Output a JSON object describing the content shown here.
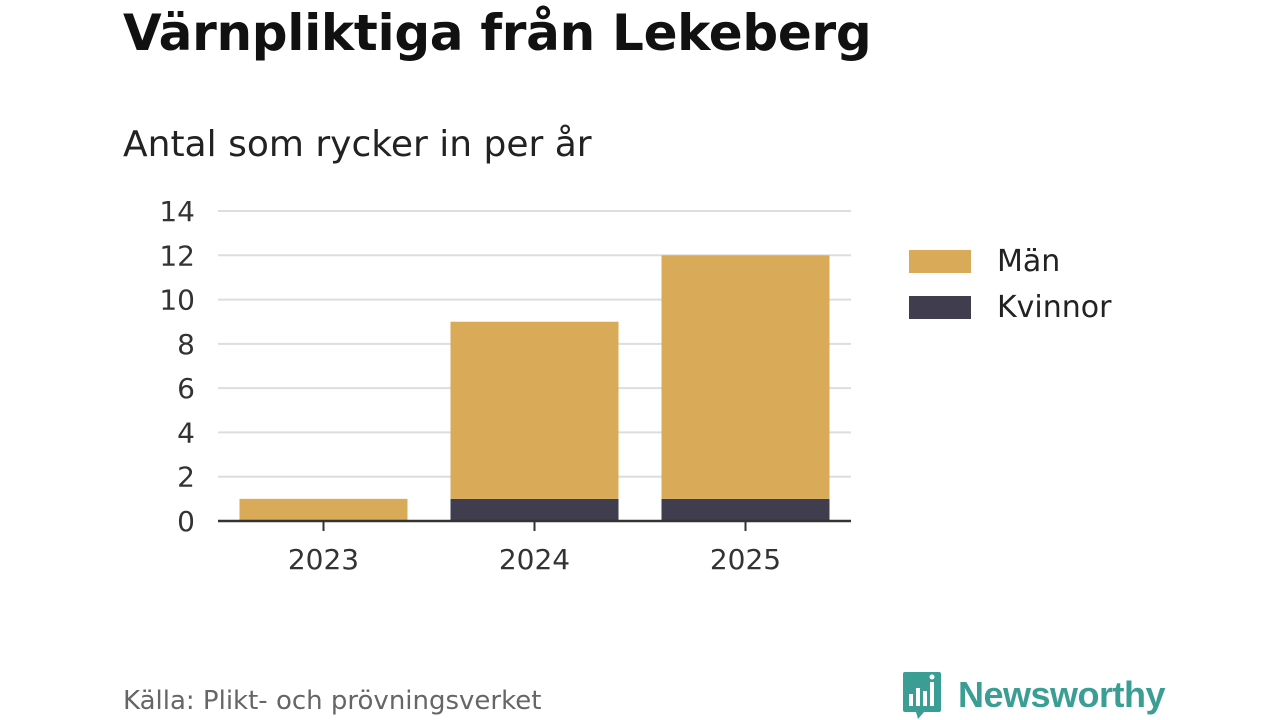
{
  "title": "Värnpliktiga från Lekeberg",
  "subtitle": "Antal som rycker in per år",
  "source": "Källa: Plikt- och prövningsverket",
  "brand": {
    "name": "Newsworthy",
    "logo_icon": "bar-chart-speech-bubble-icon",
    "color": "#3a9e94"
  },
  "colors": {
    "man": "#d9ab58",
    "kvinnor": "#403d4f",
    "grid": "#dddddd",
    "axis": "#333333"
  },
  "chart_data": {
    "type": "bar",
    "stacked": true,
    "categories": [
      "2023",
      "2024",
      "2025"
    ],
    "series": [
      {
        "name": "Kvinnor",
        "values": [
          0,
          1,
          1
        ]
      },
      {
        "name": "Män",
        "values": [
          1,
          8,
          11
        ]
      }
    ],
    "ylim": [
      0,
      14
    ],
    "yticks": [
      "0",
      "2",
      "4",
      "6",
      "8",
      "10",
      "12",
      "14"
    ],
    "xlabel": "",
    "ylabel": "",
    "grid": true,
    "legend": {
      "position": "right",
      "entries": [
        "Män",
        "Kvinnor"
      ]
    }
  }
}
